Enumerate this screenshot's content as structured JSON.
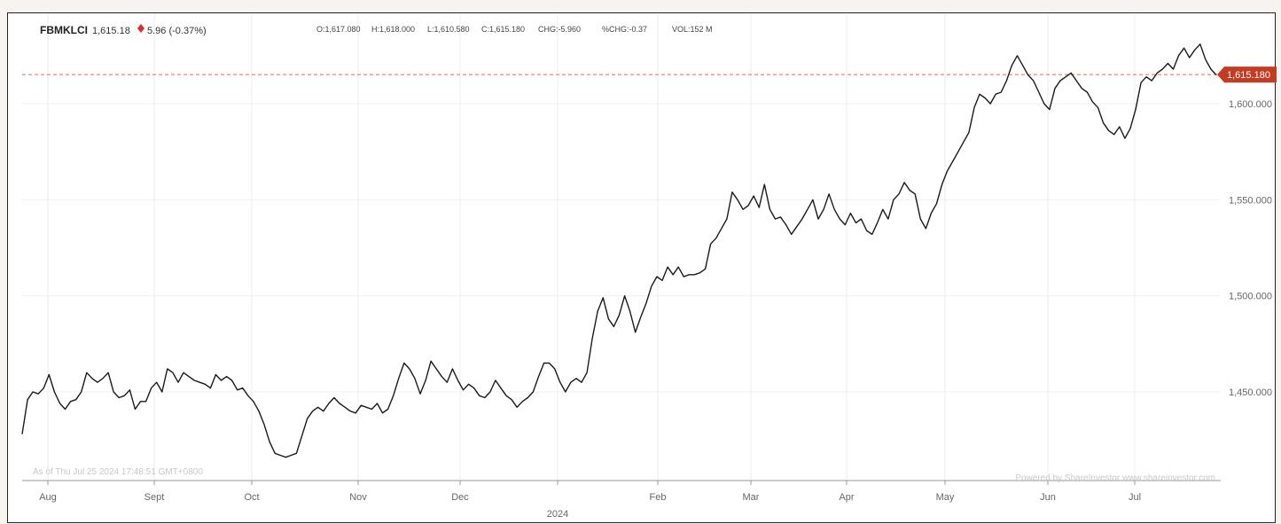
{
  "header": {
    "symbol": "FBMKLCI",
    "last": "1,615.18",
    "change": "5.96 (-0.37%)",
    "open": "O:1,617.080",
    "high": "H:1,618.000",
    "low": "L:1,610.580",
    "close": "C:1,615.180",
    "chg": "CHG:-5.960",
    "pchg": "%CHG:-0.37",
    "vol": "VOL:152 M",
    "down_color": "#d93025"
  },
  "footer": {
    "asof": "As of Thu Jul 25 2024 17:48:51 GMT+0800",
    "powered": "Powered by ShareInvestor www.shareinvestor.com"
  },
  "price_tag": {
    "label": "1,615.180",
    "color": "#c23b22"
  },
  "chart_data": {
    "type": "line",
    "title": "FBMKLCI",
    "x_tick_labels": [
      "Aug",
      "Sept",
      "Oct",
      "Nov",
      "Dec",
      "2024",
      "Feb",
      "Mar",
      "Apr",
      "May",
      "Jun",
      "Jul"
    ],
    "y_tick_labels": [
      "1,450.000",
      "1,500.000",
      "1,550.000",
      "1,600.000"
    ],
    "y_ticks": [
      1450,
      1500,
      1550,
      1600
    ],
    "ylim": [
      1405,
      1630
    ],
    "reference_line": 1615.18,
    "grid": true,
    "series": [
      {
        "x_start": "2023-07-26",
        "x_end": "2024-07-25",
        "values": [
          1428,
          1446,
          1450,
          1449,
          1452,
          1459,
          1450,
          1444,
          1441,
          1445,
          1446,
          1450,
          1460,
          1457,
          1455,
          1457,
          1460,
          1450,
          1447,
          1448,
          1451,
          1441,
          1445,
          1445,
          1452,
          1455,
          1450,
          1462,
          1460,
          1455,
          1460,
          1458,
          1456,
          1455,
          1454,
          1452,
          1459,
          1456,
          1458,
          1456,
          1451,
          1452,
          1448,
          1445,
          1440,
          1433,
          1424,
          1418,
          1417,
          1416,
          1417,
          1418,
          1427,
          1436,
          1440,
          1442,
          1440,
          1444,
          1447,
          1444,
          1442,
          1440,
          1439,
          1443,
          1442,
          1441,
          1444,
          1439,
          1441,
          1448,
          1457,
          1465,
          1462,
          1457,
          1449,
          1456,
          1466,
          1462,
          1458,
          1455,
          1462,
          1456,
          1451,
          1454,
          1452,
          1448,
          1447,
          1450,
          1456,
          1452,
          1448,
          1446,
          1442,
          1445,
          1447,
          1450,
          1458,
          1465,
          1465,
          1462,
          1455,
          1450,
          1455,
          1457,
          1455,
          1460,
          1478,
          1492,
          1499,
          1488,
          1484,
          1490,
          1500,
          1492,
          1481,
          1489,
          1496,
          1505,
          1510,
          1508,
          1515,
          1511,
          1515,
          1510,
          1511,
          1511,
          1512,
          1514,
          1527,
          1530,
          1535,
          1540,
          1554,
          1550,
          1545,
          1547,
          1552,
          1546,
          1558,
          1545,
          1540,
          1541,
          1537,
          1532,
          1536,
          1540,
          1545,
          1550,
          1540,
          1545,
          1553,
          1545,
          1540,
          1537,
          1543,
          1538,
          1540,
          1534,
          1532,
          1538,
          1545,
          1540,
          1550,
          1553,
          1559,
          1555,
          1553,
          1540,
          1535,
          1543,
          1548,
          1558,
          1565,
          1570,
          1575,
          1580,
          1585,
          1598,
          1605,
          1603,
          1600,
          1605,
          1606,
          1612,
          1620,
          1625,
          1620,
          1615,
          1612,
          1606,
          1600,
          1597,
          1608,
          1612,
          1614,
          1616,
          1612,
          1608,
          1606,
          1601,
          1598,
          1590,
          1586,
          1584,
          1588,
          1582,
          1587,
          1597,
          1611,
          1614,
          1612,
          1616,
          1618,
          1621,
          1618,
          1625,
          1629,
          1624,
          1628,
          1631,
          1623,
          1618,
          1615
        ]
      }
    ]
  }
}
